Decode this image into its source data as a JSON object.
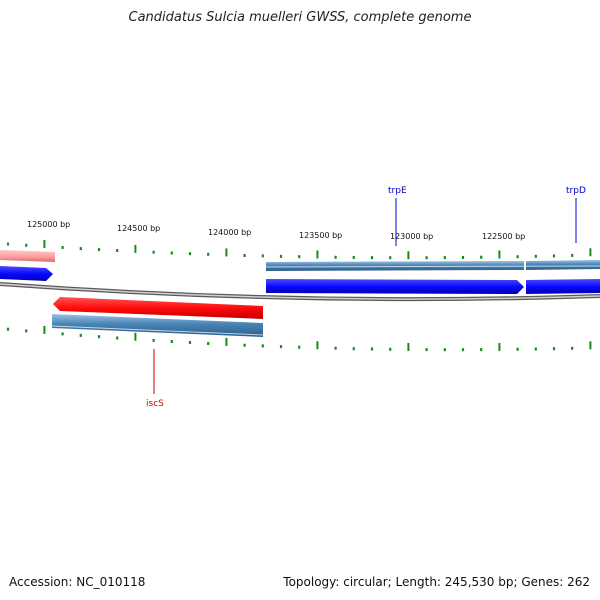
{
  "title": "Candidatus Sulcia muelleri GWSS, complete genome",
  "footer": {
    "accession": "Accession: NC_010118",
    "summary": "Topology: circular; Length: 245,530 bp; Genes: 262"
  },
  "colors": {
    "forward_gene": "#1414ff",
    "reverse_gene": "#ff1a1a",
    "forward_cds_band": "#4682b4",
    "reverse_cds_band": "#ffb0b0",
    "backbone": "#888888",
    "ticks": "#1a8a1a",
    "forward_label": "#0000cc",
    "reverse_label": "#cc0000"
  },
  "position_ticks": [
    {
      "label": "125000 bp"
    },
    {
      "label": "124500 bp"
    },
    {
      "label": "124000 bp"
    },
    {
      "label": "123500 bp"
    },
    {
      "label": "123000 bp"
    },
    {
      "label": "122500 bp"
    }
  ],
  "genes": [
    {
      "name": "trpE",
      "strand": "forward"
    },
    {
      "name": "trpD",
      "strand": "forward"
    },
    {
      "name": "iscS",
      "strand": "reverse"
    }
  ]
}
